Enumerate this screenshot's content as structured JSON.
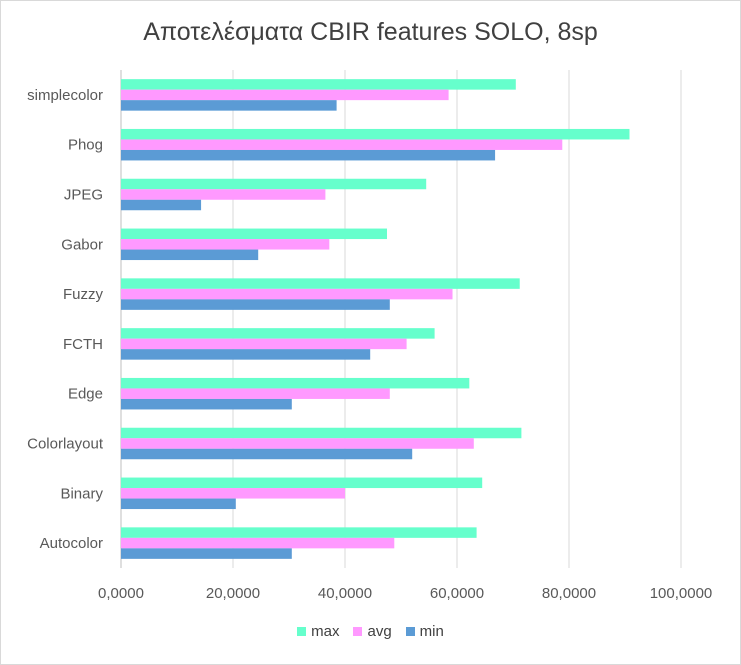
{
  "chart_data": {
    "type": "bar",
    "orientation": "horizontal",
    "title": "Αποτελέσματα CBIR features SOLO, 8sp",
    "categories": [
      "Autocolor",
      "Binary",
      "Colorlayout",
      "Edge",
      "FCTH",
      "Fuzzy",
      "Gabor",
      "JPEG",
      "Phog",
      "simplecolor"
    ],
    "series": [
      {
        "name": "max",
        "color": "#66ffcc",
        "values": [
          63.5,
          64.5,
          71.5,
          62.2,
          56.0,
          71.2,
          47.5,
          54.5,
          90.8,
          70.5
        ]
      },
      {
        "name": "avg",
        "color": "#ff99ff",
        "values": [
          48.8,
          40.0,
          63.0,
          48.0,
          51.0,
          59.2,
          37.2,
          36.5,
          78.8,
          58.5
        ]
      },
      {
        "name": "min",
        "color": "#5b9bd5",
        "values": [
          30.5,
          20.5,
          52.0,
          30.5,
          44.5,
          48.0,
          24.5,
          14.3,
          66.8,
          38.5
        ]
      }
    ],
    "xlim": [
      0,
      100
    ],
    "xticks": [
      "0,0000",
      "20,0000",
      "40,0000",
      "60,0000",
      "80,0000",
      "100,0000"
    ],
    "grid": true,
    "legend_position": "bottom",
    "legend_order": [
      "max",
      "avg",
      "min"
    ],
    "xlabel": "",
    "ylabel": ""
  }
}
